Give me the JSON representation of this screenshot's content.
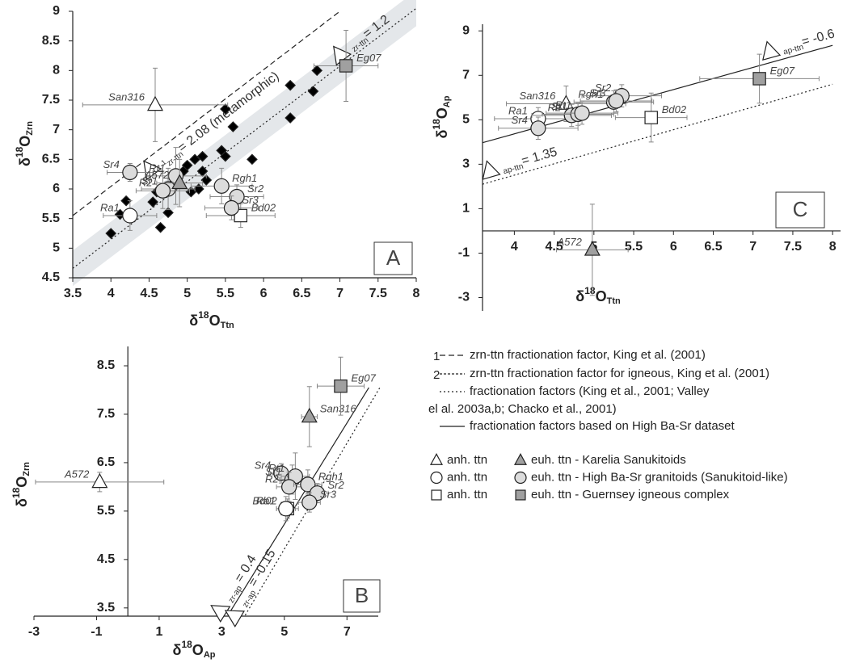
{
  "chart_data": [
    {
      "type": "scatter",
      "panel": "A",
      "xlabel": [
        "δ",
        "18",
        "O",
        "Ttn"
      ],
      "ylabel": [
        "δ",
        "18",
        "O",
        "Zrn"
      ],
      "xlim": [
        3.5,
        8
      ],
      "ylim": [
        4.5,
        9
      ],
      "xticks": [
        3.5,
        4,
        4.5,
        5,
        5.5,
        6,
        6.5,
        7,
        7.5,
        8
      ],
      "yticks": [
        4.5,
        5,
        5.5,
        6,
        6.5,
        7,
        7.5,
        8,
        8.5,
        9
      ],
      "band": {
        "x": [
          3.5,
          8
        ],
        "y": [
          4.66,
          9.05
        ],
        "halfwidth": 0.3,
        "color": "#e4e7ea"
      },
      "lines": [
        {
          "marker": "1",
          "sub": "zr-ttn",
          "label": "= 2.08 (metamorphic)",
          "style": "dashed",
          "x": [
            3.5,
            7.0
          ],
          "y": [
            5.55,
            9.0
          ]
        },
        {
          "sub": "zr-ttn",
          "label": "= 1.2",
          "style": "dotted",
          "x": [
            3.5,
            8
          ],
          "y": [
            4.66,
            9.05
          ]
        }
      ],
      "series": [
        {
          "symbol": "diamond",
          "color": "#000000",
          "x": [
            4.0,
            4.12,
            4.2,
            4.55,
            4.6,
            4.65,
            4.75,
            4.78,
            4.88,
            4.95,
            5.0,
            5.05,
            5.1,
            5.15,
            5.2,
            5.2,
            5.25,
            5.45,
            5.5,
            5.5,
            5.6,
            5.85,
            6.35,
            6.35,
            6.65,
            6.7
          ],
          "y": [
            5.25,
            5.57,
            5.8,
            5.78,
            5.95,
            5.35,
            5.6,
            6.05,
            6.2,
            6.3,
            6.4,
            5.95,
            6.5,
            6.0,
            6.55,
            6.3,
            6.15,
            6.65,
            6.55,
            7.35,
            7.05,
            6.5,
            7.75,
            7.2,
            7.65,
            8.0
          ]
        }
      ],
      "points": [
        {
          "label": "San316",
          "x": 4.58,
          "y": 7.42,
          "xerr": 0.95,
          "yerr": 0.62,
          "symbol": "triangle",
          "fill": "#ffffff"
        },
        {
          "label": "Eg07",
          "x": 7.08,
          "y": 8.08,
          "xerr": 0.42,
          "yerr": 0.6,
          "symbol": "square",
          "fill": "#a0a0a0"
        },
        {
          "label": "Bd02",
          "x": 5.7,
          "y": 5.55,
          "xerr": 0.45,
          "yerr": 0.2,
          "symbol": "square",
          "fill": "#ffffff"
        },
        {
          "label": "Ra1",
          "x": 4.25,
          "y": 5.55,
          "xerr": 0.35,
          "yerr": 0.25,
          "symbol": "circle",
          "fill": "#ffffff"
        },
        {
          "label": "Sr4",
          "x": 4.25,
          "y": 6.28,
          "xerr": 0.3,
          "yerr": 0.15,
          "symbol": "circle",
          "fill": "#dcdcdc"
        },
        {
          "label": "Rt1",
          "x": 4.85,
          "y": 6.22,
          "xerr": 0.4,
          "yerr": 0.48,
          "symbol": "circle",
          "fill": "#dcdcdc"
        },
        {
          "label": "Sr1",
          "x": 4.75,
          "y": 6.0,
          "xerr": 0.35,
          "yerr": 0.35,
          "symbol": "circle",
          "fill": "#dcdcdc"
        },
        {
          "label": "R2",
          "x": 4.68,
          "y": 5.97,
          "xerr": 0.35,
          "yerr": 0.3,
          "symbol": "circle",
          "fill": "#dcdcdc"
        },
        {
          "label": "Rgh1",
          "x": 5.45,
          "y": 6.05,
          "xerr": 0.4,
          "yerr": 0.3,
          "symbol": "circle",
          "fill": "#dcdcdc"
        },
        {
          "label": "Sr2",
          "x": 5.65,
          "y": 5.87,
          "xerr": 0.35,
          "yerr": 0.2,
          "symbol": "circle",
          "fill": "#dcdcdc"
        },
        {
          "label": "Sr3",
          "x": 5.58,
          "y": 5.68,
          "xerr": 0.35,
          "yerr": 0.2,
          "symbol": "circle",
          "fill": "#dcdcdc"
        },
        {
          "label": "A572",
          "x": 4.9,
          "y": 6.1,
          "xerr": 0.3,
          "yerr": 0.4,
          "symbol": "triangle",
          "fill": "#a0a0a0"
        }
      ]
    },
    {
      "type": "scatter",
      "panel": "B",
      "xlabel": [
        "δ",
        "18",
        "O",
        "Ap"
      ],
      "ylabel": [
        "δ",
        "18",
        "O",
        "Zrn"
      ],
      "xlim": [
        -3,
        8
      ],
      "ylim": [
        3.33,
        8.9
      ],
      "y_axis_at": 0,
      "xticks": [
        -3,
        -1,
        1,
        3,
        5,
        7
      ],
      "yticks": [
        3.5,
        4.5,
        5.5,
        6.5,
        7.5,
        8.5
      ],
      "lines": [
        {
          "sub": "zr-ap",
          "label": " = 0.4",
          "style": "solid",
          "x": [
            3.2,
            7.7
          ],
          "y": [
            3.35,
            8.05
          ]
        },
        {
          "sub": "zr-ap",
          "label": " = -0.15",
          "style": "dotted",
          "x": [
            3.75,
            8.05
          ],
          "y": [
            3.35,
            8.05
          ]
        }
      ],
      "points": [
        {
          "label": "A572",
          "x": -0.9,
          "y": 6.1,
          "xerr": 2.05,
          "yerr": 0.2,
          "symbol": "triangle",
          "fill": "#ffffff"
        },
        {
          "label": "San316",
          "x": 5.8,
          "y": 7.45,
          "xerr": 0.25,
          "yerr": 0.62,
          "symbol": "triangle",
          "fill": "#a0a0a0"
        },
        {
          "label": "Eg07",
          "x": 6.8,
          "y": 8.08,
          "xerr": 0.75,
          "yerr": 0.6,
          "symbol": "square",
          "fill": "#a0a0a0"
        },
        {
          "label": "Bd02",
          "x": 5.1,
          "y": 5.55,
          "xerr": 0.35,
          "yerr": 0.2,
          "symbol": "square",
          "fill": "#ffffff"
        },
        {
          "label": "Sr4",
          "x": 4.9,
          "y": 6.28,
          "xerr": 0.4,
          "yerr": 0.2,
          "symbol": "circle",
          "fill": "#dcdcdc"
        },
        {
          "label": "Sr1",
          "x": 5.25,
          "y": 6.15,
          "xerr": 0.4,
          "yerr": 0.3,
          "symbol": "circle",
          "fill": "#dcdcdc"
        },
        {
          "label": "Rt1",
          "x": 5.35,
          "y": 6.22,
          "xerr": 0.45,
          "yerr": 0.48,
          "symbol": "circle",
          "fill": "#dcdcdc"
        },
        {
          "label": "R2",
          "x": 5.15,
          "y": 6.0,
          "xerr": 0.4,
          "yerr": 0.3,
          "symbol": "circle",
          "fill": "#dcdcdc"
        },
        {
          "label": "Ra1",
          "x": 5.05,
          "y": 5.55,
          "xerr": 0.3,
          "yerr": 0.25,
          "symbol": "circle",
          "fill": "#ffffff"
        },
        {
          "label": "Rgh1",
          "x": 5.75,
          "y": 6.05,
          "xerr": 0.45,
          "yerr": 0.3,
          "symbol": "circle",
          "fill": "#dcdcdc"
        },
        {
          "label": "Sr2",
          "x": 6.05,
          "y": 5.87,
          "xerr": 0.35,
          "yerr": 0.2,
          "symbol": "circle",
          "fill": "#dcdcdc"
        },
        {
          "label": "Sr3",
          "x": 5.8,
          "y": 5.68,
          "xerr": 0.35,
          "yerr": 0.2,
          "symbol": "circle",
          "fill": "#dcdcdc"
        }
      ]
    },
    {
      "type": "scatter",
      "panel": "C",
      "xlabel": [
        "δ",
        "18",
        "O",
        "Ttn"
      ],
      "ylabel": [
        "δ",
        "18",
        "O",
        "Ap"
      ],
      "xlim": [
        3.6,
        8.1
      ],
      "ylim": [
        -3.6,
        9.3
      ],
      "x_axis_at": 0,
      "xticks": [
        4,
        4.5,
        5,
        5.5,
        6,
        6.5,
        7,
        7.5,
        8
      ],
      "yticks": [
        -3,
        -1,
        1,
        3,
        5,
        7,
        9
      ],
      "lines": [
        {
          "sub": "ap-ttn",
          "label": "= -0.6",
          "style": "solid",
          "x": [
            3.6,
            8.0
          ],
          "y": [
            3.97,
            8.35
          ]
        },
        {
          "sub": "ap-ttn",
          "label": "= 1.35",
          "style": "dotted",
          "x": [
            3.6,
            8.0
          ],
          "y": [
            2.1,
            6.6
          ]
        }
      ],
      "points": [
        {
          "label": "San316",
          "x": 4.65,
          "y": 5.72,
          "xerr": 0.75,
          "yerr": 0.8,
          "symbol": "triangle",
          "fill": "#ffffff"
        },
        {
          "label": "Eg07",
          "x": 7.08,
          "y": 6.85,
          "xerr": 0.75,
          "yerr": 1.1,
          "symbol": "square",
          "fill": "#a0a0a0"
        },
        {
          "label": "Bd02",
          "x": 5.72,
          "y": 5.1,
          "xerr": 0.45,
          "yerr": 1.1,
          "symbol": "square",
          "fill": "#ffffff"
        },
        {
          "label": "A572",
          "x": 4.98,
          "y": -0.85,
          "xerr": 0.45,
          "yerr": 2.05,
          "symbol": "triangle",
          "fill": "#a0a0a0"
        },
        {
          "label": "Ra1",
          "x": 4.3,
          "y": 5.05,
          "xerr": 0.55,
          "yerr": 0.5,
          "symbol": "circle",
          "fill": "#ffffff"
        },
        {
          "label": "Sr4",
          "x": 4.3,
          "y": 4.62,
          "xerr": 0.5,
          "yerr": 0.5,
          "symbol": "circle",
          "fill": "#dcdcdc"
        },
        {
          "label": "R2",
          "x": 4.72,
          "y": 5.2,
          "xerr": 0.5,
          "yerr": 0.5,
          "symbol": "circle",
          "fill": "#dcdcdc"
        },
        {
          "label": "Sr1",
          "x": 4.8,
          "y": 5.25,
          "xerr": 0.45,
          "yerr": 0.5,
          "symbol": "circle",
          "fill": "#dcdcdc"
        },
        {
          "label": "Rt1",
          "x": 4.85,
          "y": 5.3,
          "xerr": 0.45,
          "yerr": 0.5,
          "symbol": "circle",
          "fill": "#dcdcdc"
        },
        {
          "label": "Rgh1",
          "x": 5.25,
          "y": 5.8,
          "xerr": 0.5,
          "yerr": 0.5,
          "symbol": "circle",
          "fill": "#dcdcdc"
        },
        {
          "label": "Sr2",
          "x": 5.35,
          "y": 6.08,
          "xerr": 0.5,
          "yerr": 0.5,
          "symbol": "circle",
          "fill": "#dcdcdc"
        },
        {
          "label": "Sr3",
          "x": 5.28,
          "y": 5.85,
          "xerr": 0.45,
          "yerr": 0.5,
          "symbol": "circle",
          "fill": "#dcdcdc"
        }
      ]
    }
  ],
  "legend": {
    "lines": [
      {
        "marker": "1",
        "style": "dashed",
        "text": "zrn-ttn fractionation factor, King et al. (2001)"
      },
      {
        "marker": "2",
        "style": "fine",
        "text": "zrn-ttn fractionation factor for igneous, King et al. (2001)"
      },
      {
        "style": "dotted",
        "text": "fractionation factors (King et al., 2001; Valley"
      },
      {
        "text": "el al. 2003a,b; Chacko et al., 2001)"
      },
      {
        "style": "solid",
        "text": "fractionation factors based on High Ba-Sr dataset"
      }
    ],
    "symbols": [
      {
        "symbol": "triangle",
        "open_label": "anh. ttn",
        "fill": "#a0a0a0",
        "text": "euh. ttn - Karelia Sanukitoids"
      },
      {
        "symbol": "circle",
        "open_label": "anh. ttn",
        "fill": "#dcdcdc",
        "text": "euh. ttn - High Ba-Sr granitoids (Sanukitoid-like)"
      },
      {
        "symbol": "square",
        "open_label": "anh. ttn",
        "fill": "#a0a0a0",
        "text": "euh. ttn - Guernsey igneous complex"
      }
    ]
  }
}
